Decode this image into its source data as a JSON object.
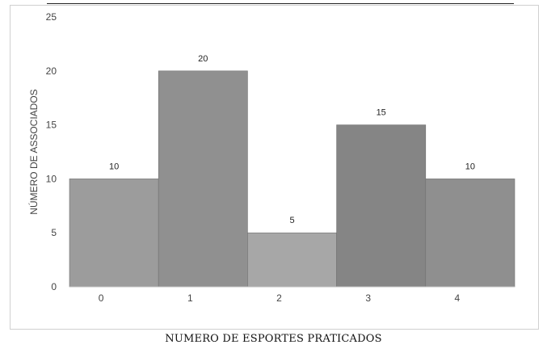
{
  "chart_data": {
    "type": "bar",
    "categories": [
      "0",
      "1",
      "2",
      "3",
      "4"
    ],
    "values": [
      10,
      20,
      5,
      15,
      10
    ],
    "data_labels": [
      "10",
      "20",
      "5",
      "15",
      "10"
    ],
    "xlabel": "NUMERO DE ESPORTES PRATICADOS",
    "ylabel": "NÚMERO DE ASSOCIADOS",
    "ylim": [
      0,
      25
    ],
    "yticks": [
      "0",
      "5",
      "10",
      "15",
      "20",
      "25"
    ],
    "bar_colors": [
      "#9c9c9c",
      "#909090",
      "#a7a7a7",
      "#858585",
      "#8f8f8f"
    ],
    "grid": false,
    "legend": "none"
  }
}
